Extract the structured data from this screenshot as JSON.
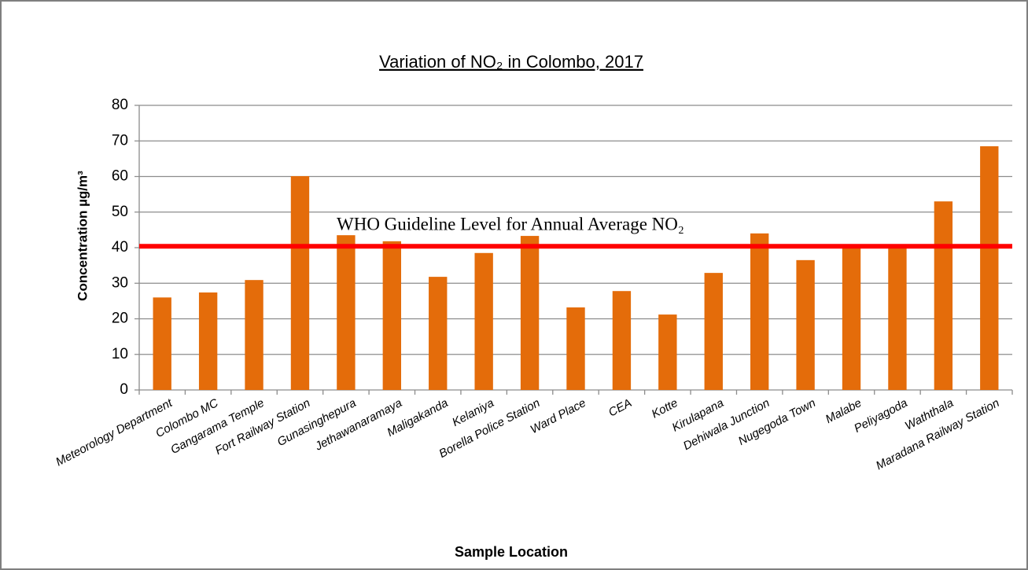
{
  "chart_data": {
    "type": "bar",
    "title": "Variation of NO₂ in Colombo, 2017",
    "x_label": "Sample Location",
    "y_label": "Concentration µg/m³",
    "categories": [
      "Meteorology Department",
      "Colombo MC",
      "Gangarama Temple",
      "Fort Railway Station",
      "Gunasinghepura",
      "Jethawanaramaya",
      "Maligakanda",
      "Kelaniya",
      "Borella Police Station",
      "Ward Place",
      "CEA",
      "Kotte",
      "Kirulapana",
      "Dehiwala Junction",
      "Nugegoda Town",
      "Malabe",
      "Peliyagoda",
      "Waththala",
      "Maradana Railway Station"
    ],
    "values": [
      26,
      27.4,
      30.9,
      60.1,
      43.5,
      41.8,
      31.8,
      38.5,
      43.3,
      23.2,
      27.8,
      21.2,
      32.9,
      44,
      36.5,
      40.5,
      40,
      53,
      68.5
    ],
    "color": "#e46c0a",
    "ylim": [
      0,
      80
    ],
    "yticks": [
      0,
      10,
      20,
      30,
      40,
      50,
      60,
      70,
      80
    ],
    "grid": true,
    "reference_line": {
      "value": 40.4,
      "label": "WHO Guideline Level for Annual Average NO₂",
      "color": "#ff0000"
    }
  }
}
